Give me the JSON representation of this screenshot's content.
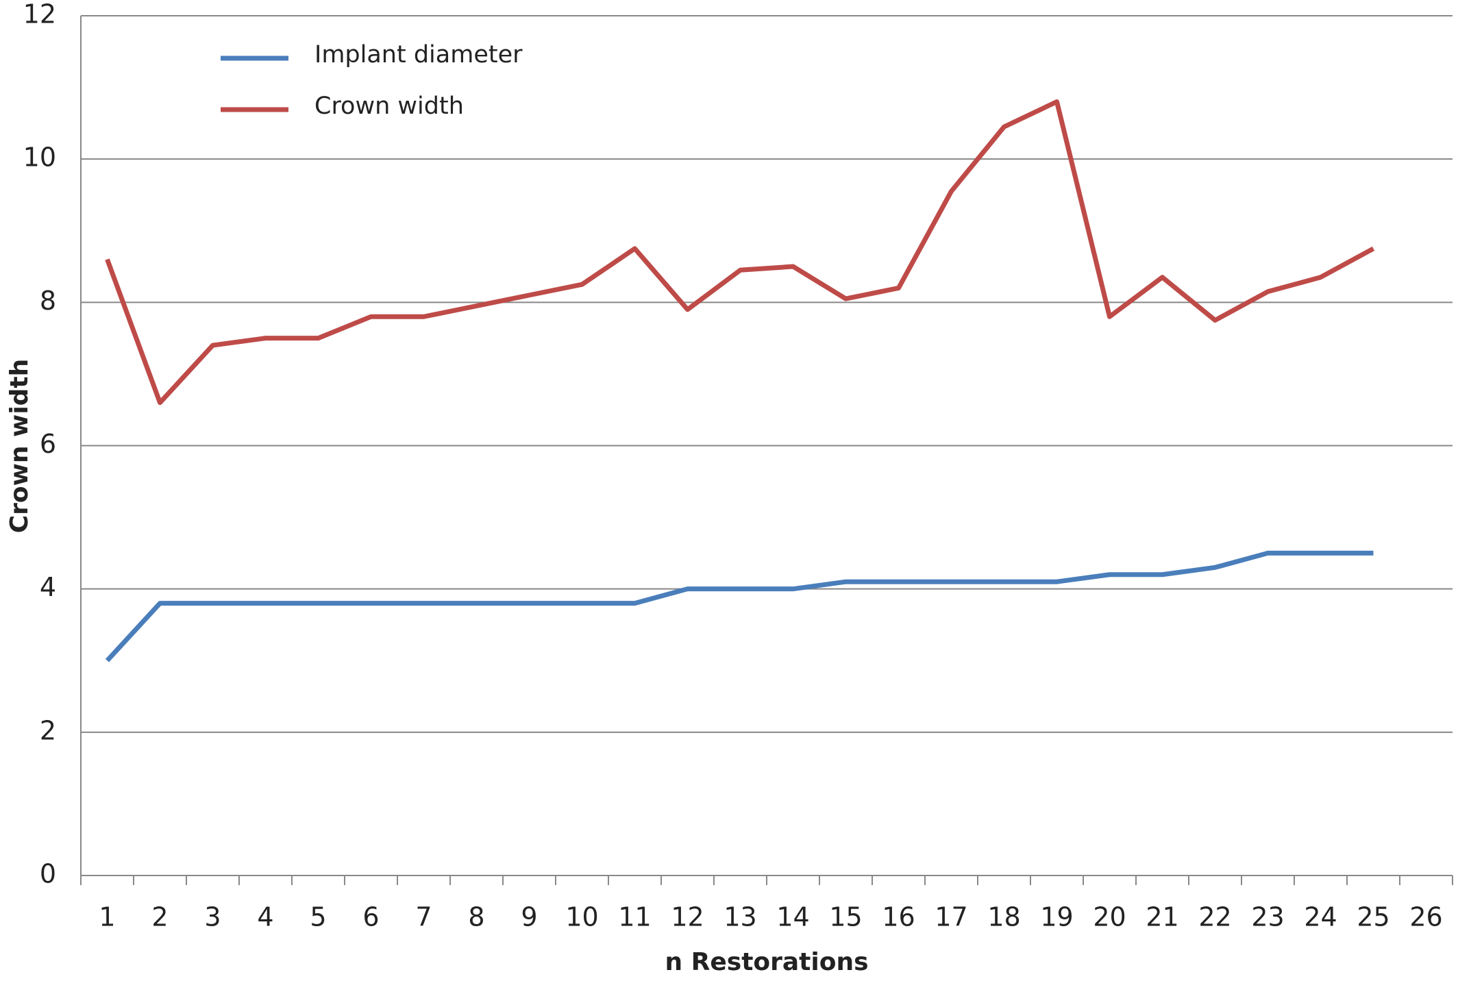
{
  "chart_data": {
    "type": "line",
    "ylabel": "Crown  width",
    "xlabel": "n Restorations",
    "categories": [
      "1",
      "2",
      "3",
      "4",
      "5",
      "6",
      "7",
      "8",
      "9",
      "10",
      "11",
      "12",
      "13",
      "14",
      "15",
      "16",
      "17",
      "18",
      "19",
      "20",
      "21",
      "22",
      "23",
      "24",
      "25",
      "26"
    ],
    "series": [
      {
        "name": "Implant  diameter",
        "color": "#4a7ebb",
        "values": [
          3.0,
          3.8,
          3.8,
          3.8,
          3.8,
          3.8,
          3.8,
          3.8,
          3.8,
          3.8,
          3.8,
          4.0,
          4.0,
          4.0,
          4.1,
          4.1,
          4.1,
          4.1,
          4.1,
          4.2,
          4.2,
          4.3,
          4.5,
          4.5,
          4.5,
          null
        ]
      },
      {
        "name": "Crown width",
        "color": "#be4b48",
        "values": [
          8.6,
          6.6,
          7.4,
          7.5,
          7.5,
          7.8,
          7.8,
          7.95,
          8.1,
          8.25,
          8.75,
          7.9,
          8.45,
          8.5,
          8.05,
          8.2,
          9.55,
          10.45,
          10.8,
          7.8,
          8.35,
          7.75,
          8.15,
          8.35,
          8.75,
          null
        ]
      }
    ],
    "ylim": [
      0,
      12
    ],
    "yticks": [
      0,
      2,
      4,
      6,
      8,
      10,
      12
    ],
    "grid": true,
    "legend": "top-left"
  }
}
